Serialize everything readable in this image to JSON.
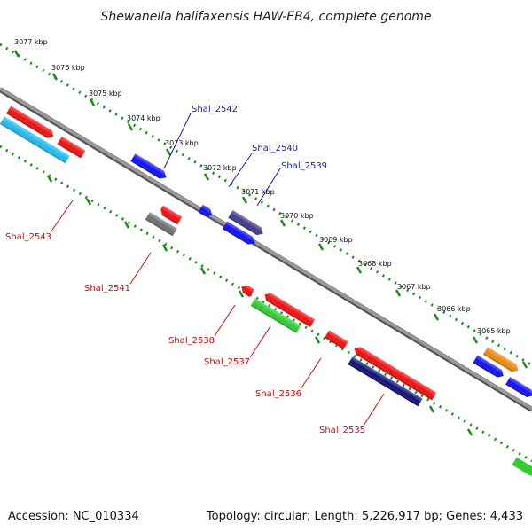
{
  "title": "Shewanella halifaxensis HAW-EB4, complete genome",
  "footer": {
    "accession": "Accession: NC_010334",
    "summary": "Topology: circular; Length: 5,226,917 bp; Genes: 4,433"
  },
  "ticks": [
    "3077 kbp",
    "3076 kbp",
    "3075 kbp",
    "3074 kbp",
    "3073 kbp",
    "3072 kbp",
    "3071 kbp",
    "3070 kbp",
    "3069 kbp",
    "3068 kbp",
    "3067 kbp",
    "3066 kbp",
    "3065 kbp"
  ],
  "gene_labels_top": [
    "Shal_2542",
    "Shal_2540",
    "Shal_2539"
  ],
  "gene_labels_bottom": [
    "Shal_2543",
    "Shal_2541",
    "Shal_2538",
    "Shal_2537",
    "Shal_2536",
    "Shal_2535"
  ],
  "colors": {
    "backbone": "#808080",
    "dots": "#1a8a1a",
    "red": "#ee1111",
    "blue": "#1111ee",
    "cyan": "#22bbee",
    "navy": "#111177",
    "purple": "#443c8c",
    "green": "#33cc33",
    "orange": "#ee8811",
    "gray": "#707070",
    "label_blue": "#1a1ab4",
    "label_red": "#c01010"
  }
}
